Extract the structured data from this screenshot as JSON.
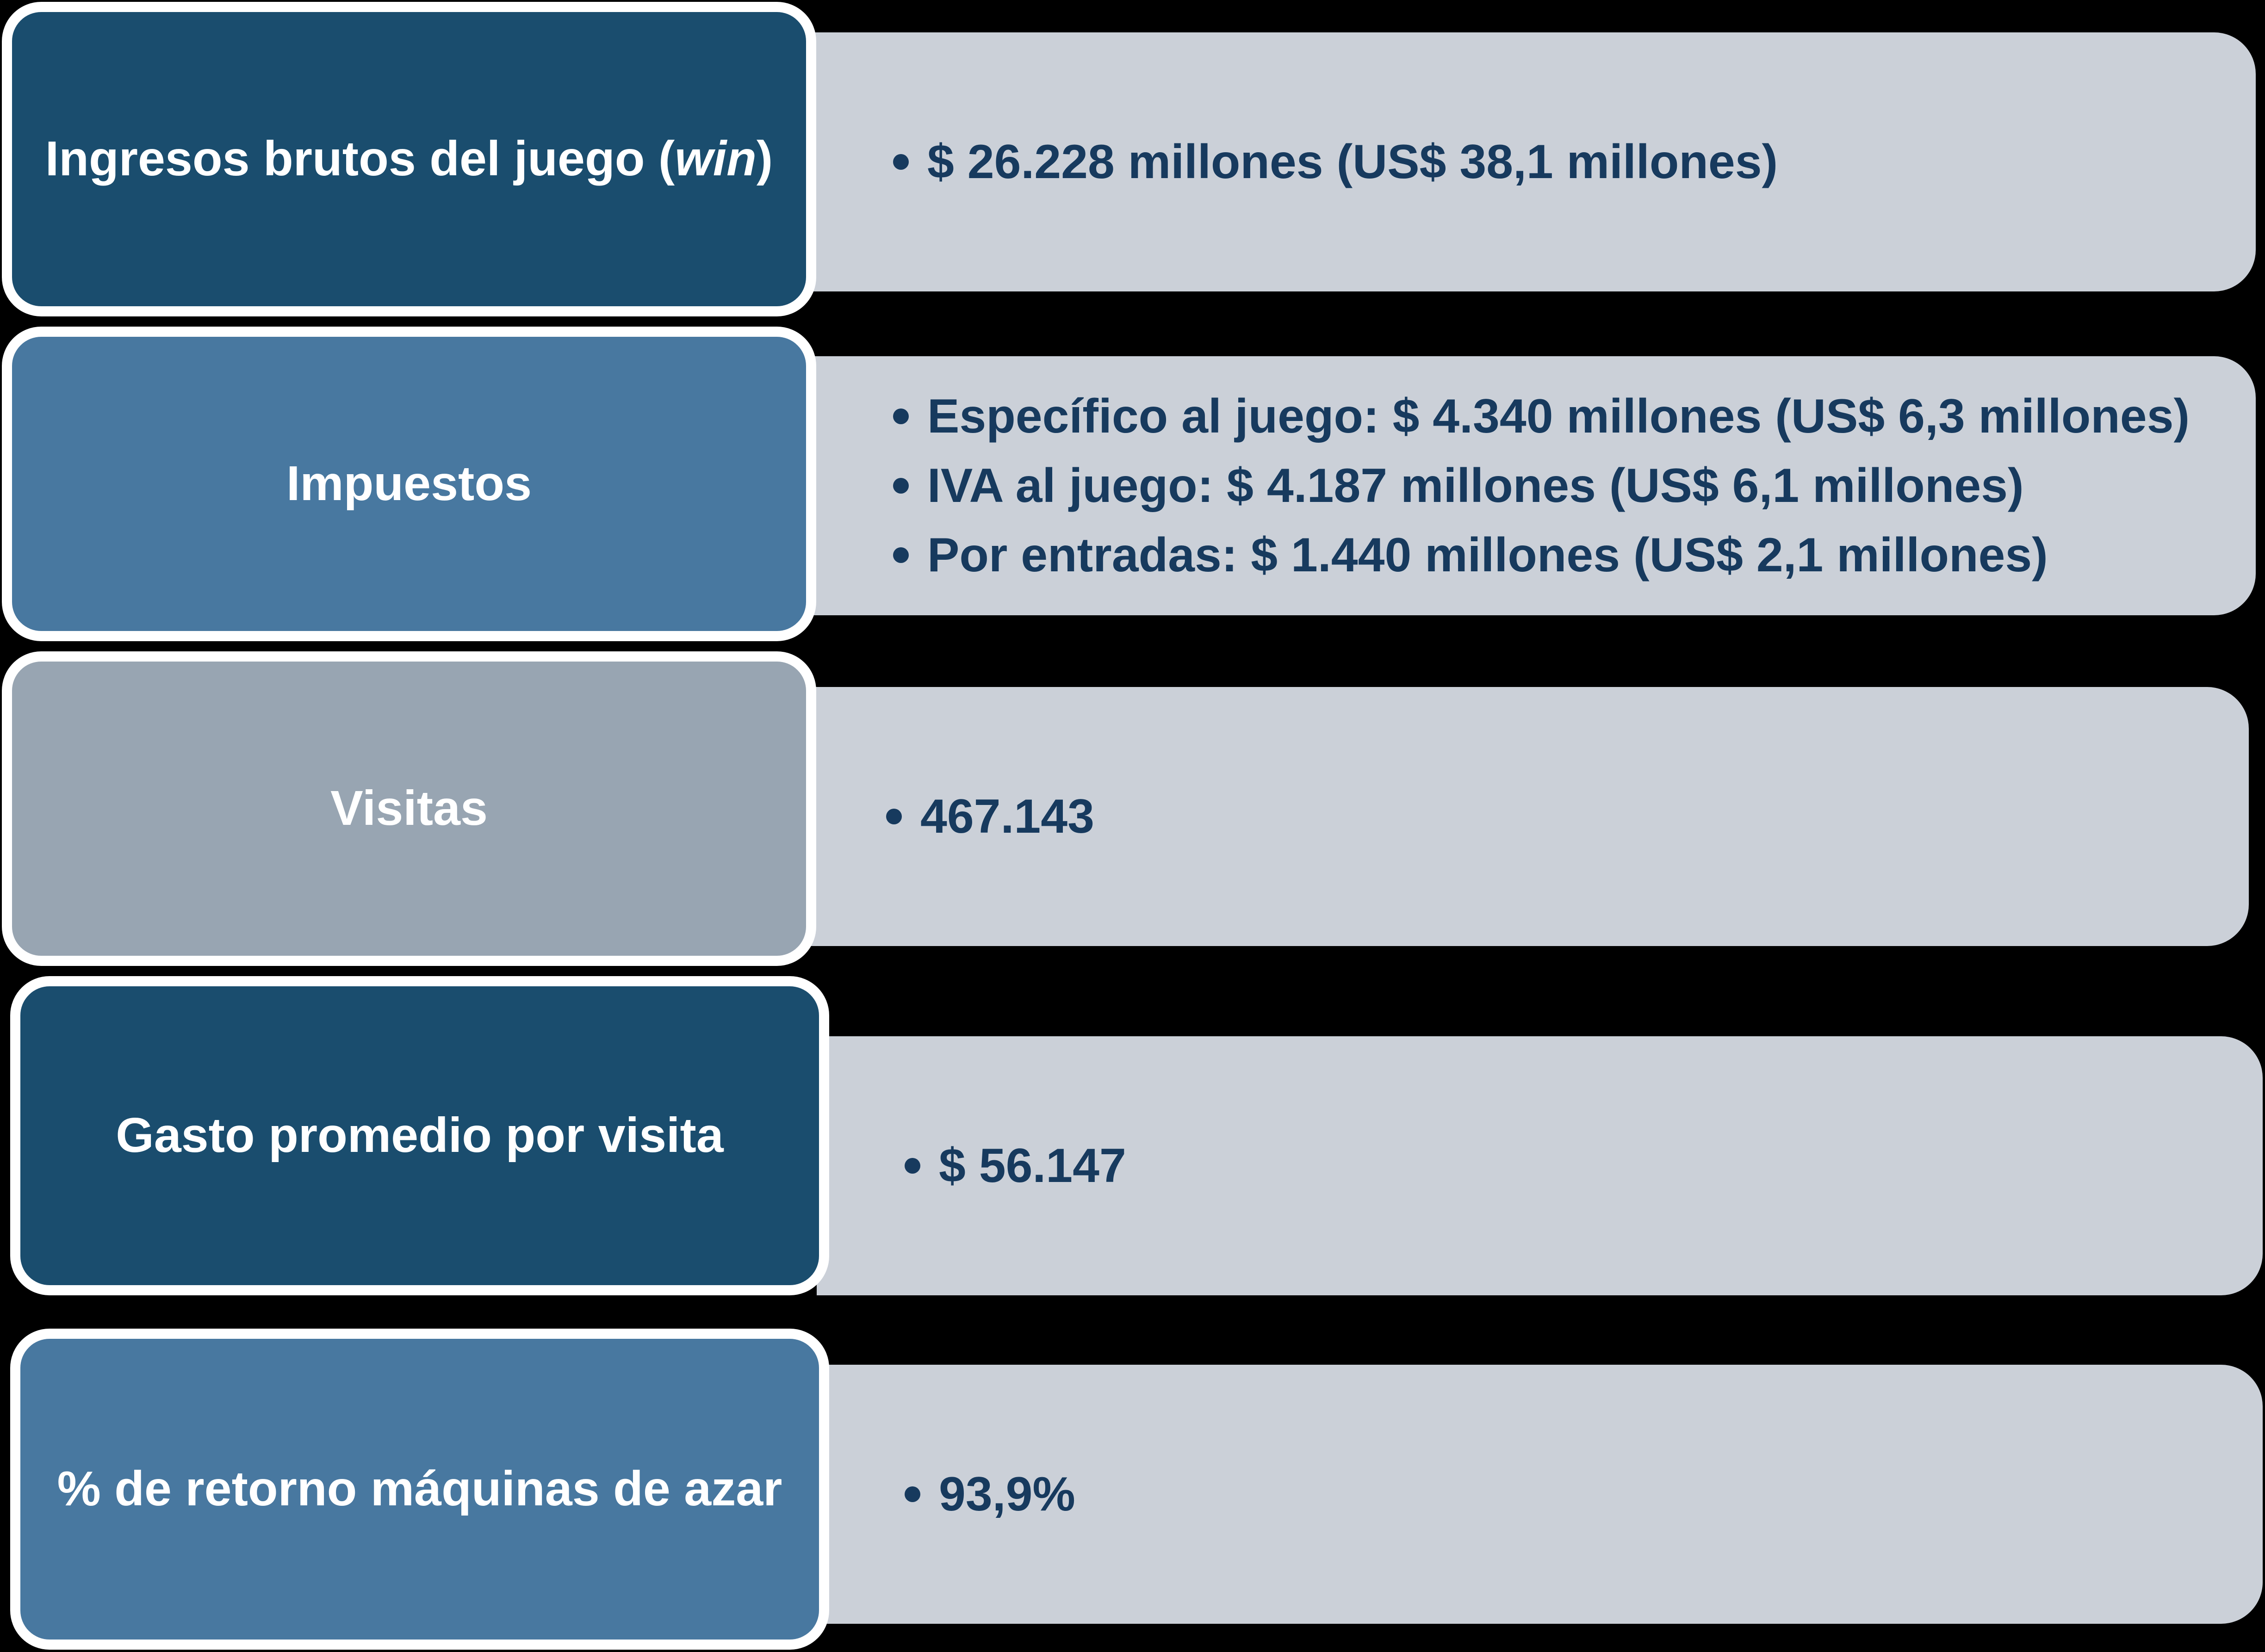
{
  "colors": {
    "background": "#000000",
    "panel": "#cbd0d8",
    "text_dark": "#173a5e",
    "box_dark": "#1a4d6e",
    "box_mid": "#4878a0",
    "box_gray": "#98a5b2",
    "border": "#ffffff"
  },
  "rows": [
    {
      "label": "Ingresos brutos del juego (",
      "label_italic": "win",
      "label_end": ")",
      "items": [
        "$ 26.228 millones (US$ 38,1 millones)"
      ]
    },
    {
      "label": "Impuestos",
      "items": [
        "Específico al juego: $ 4.340 millones (US$ 6,3 millones)",
        "IVA al juego: $ 4.187 millones (US$ 6,1 millones)",
        "Por entradas: $ 1.440 millones (US$ 2,1 millones)"
      ]
    },
    {
      "label": "Visitas",
      "items": [
        "467.143"
      ]
    },
    {
      "label": "Gasto promedio por visita",
      "items": [
        "$ 56.147"
      ]
    },
    {
      "label": "% de retorno máquinas de azar",
      "items": [
        "93,9%"
      ]
    }
  ]
}
